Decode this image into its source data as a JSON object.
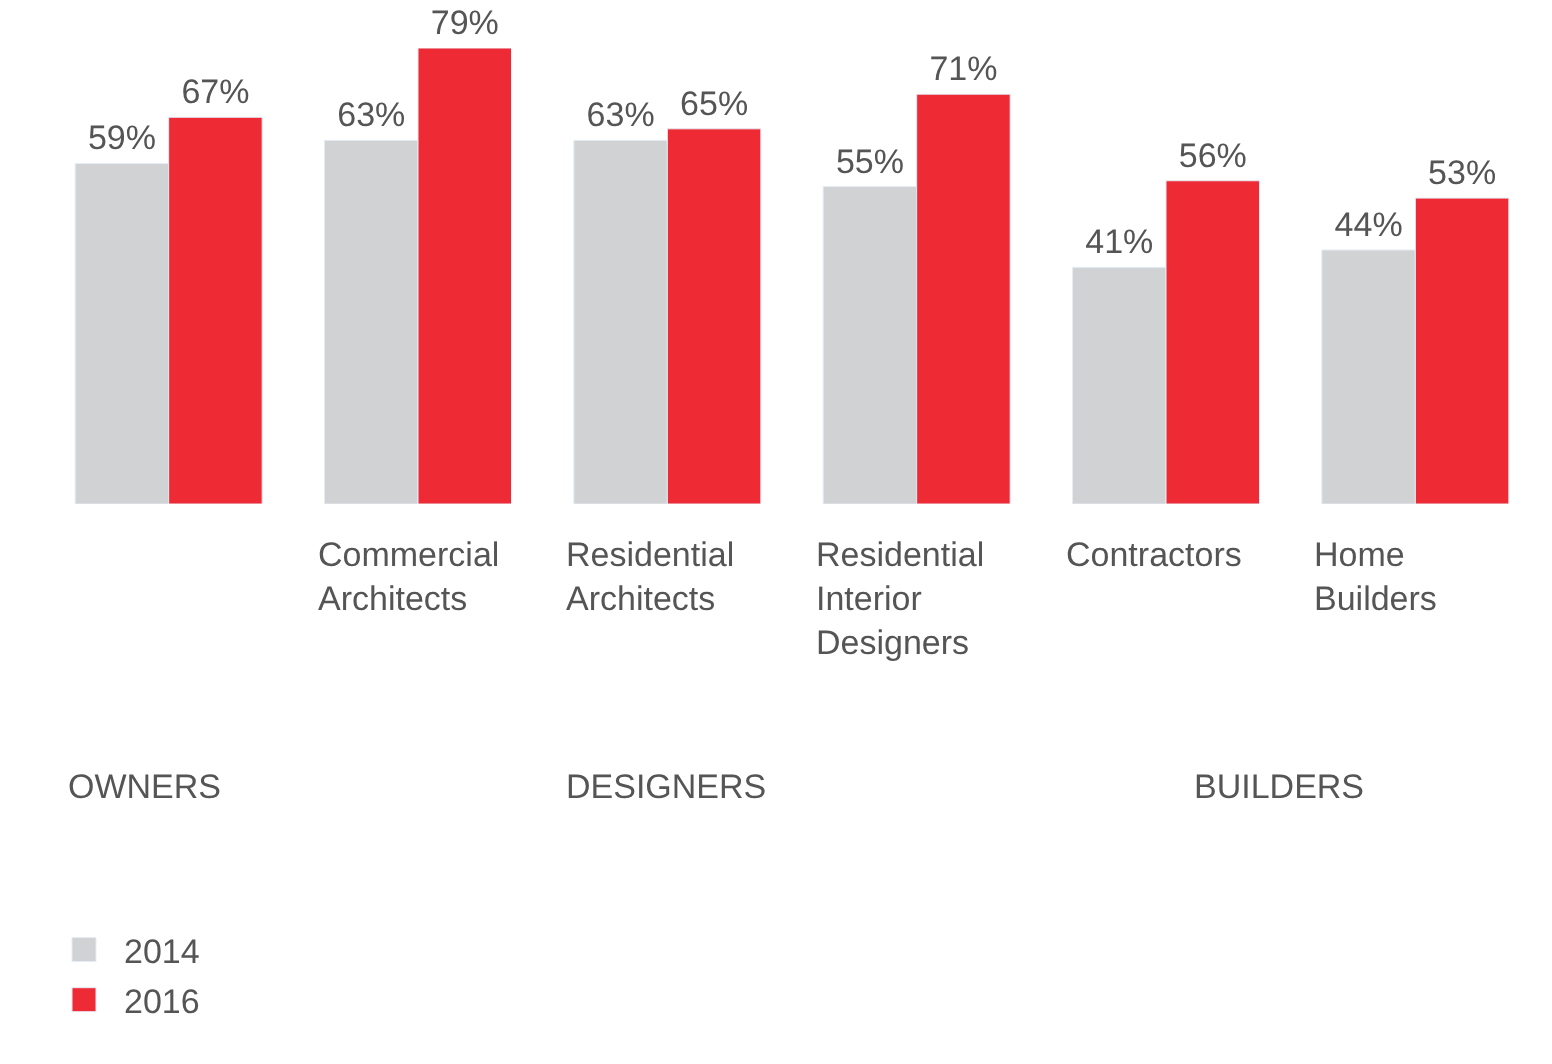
{
  "chart_data": {
    "type": "bar",
    "categories": [
      null,
      "Commercial Architects",
      "Residential Architects",
      "Residential Interior Designers",
      "Contractors",
      "Home Builders"
    ],
    "series": [
      {
        "name": "2014",
        "color": "#d1d2d4",
        "values": [
          59,
          63,
          63,
          55,
          41,
          44
        ],
        "value_labels": [
          "59%",
          "63%",
          "63%",
          "55%",
          "41%",
          "44%"
        ]
      },
      {
        "name": "2016",
        "color": "#ee2a35",
        "values": [
          67,
          79,
          65,
          71,
          56,
          53
        ],
        "value_labels": [
          "67%",
          "79%",
          "65%",
          "71%",
          "56%",
          "53%"
        ]
      }
    ],
    "legend": "bottom left",
    "annotations": [
      "OWNERS",
      "DESIGNERS",
      "BUILDERS"
    ]
  }
}
